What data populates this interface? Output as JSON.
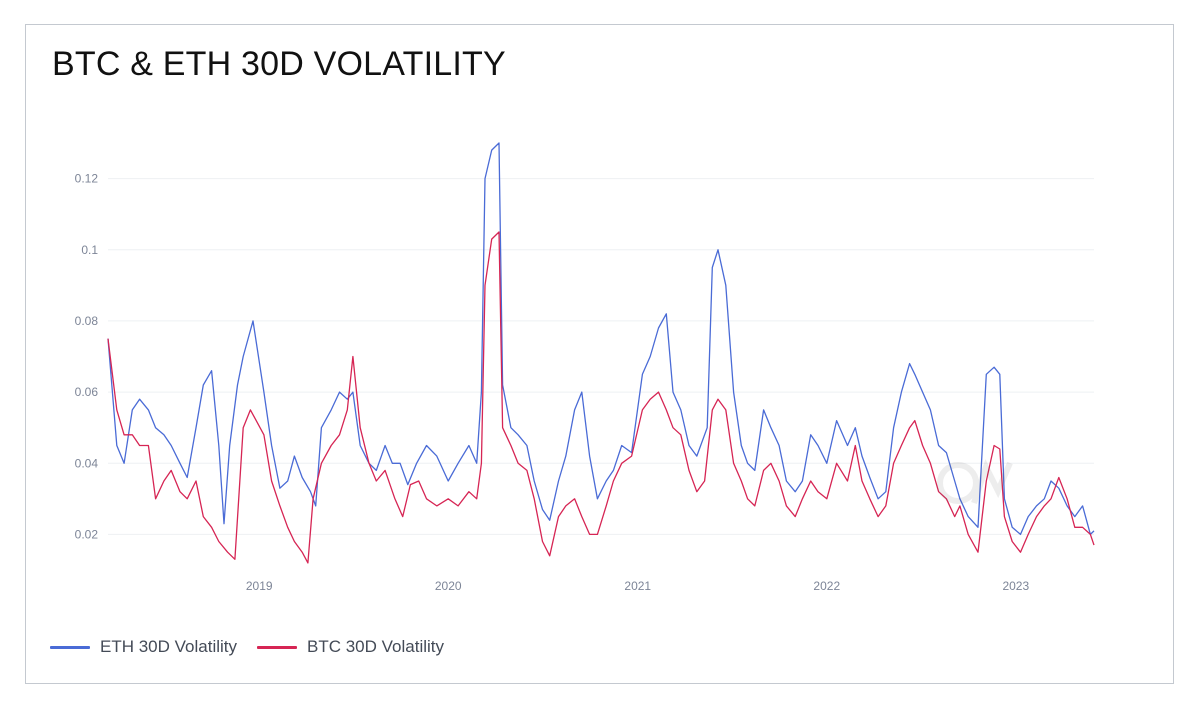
{
  "chart_data": {
    "type": "line",
    "title": "BTC & ETH 30D VOLATILITY",
    "xlabel": "",
    "ylabel": "",
    "xlim": [
      "2018-03-15",
      "2023-06-01"
    ],
    "ylim": [
      0.01,
      0.13
    ],
    "x_ticks": [
      "2019",
      "2020",
      "2021",
      "2022",
      "2023"
    ],
    "y_ticks": [
      0.02,
      0.04,
      0.06,
      0.08,
      0.1,
      0.12
    ],
    "y_tick_labels": [
      "0.02",
      "0.04",
      "0.06",
      "0.08",
      "0.1",
      "0.12"
    ],
    "grid": "horizontal",
    "legend": "bottom-left",
    "series": [
      {
        "name": "ETH 30D Volatility",
        "color": "#4a6bd6",
        "points": [
          [
            "2018-03-15",
            0.075
          ],
          [
            "2018-04-01",
            0.045
          ],
          [
            "2018-04-15",
            0.04
          ],
          [
            "2018-05-01",
            0.055
          ],
          [
            "2018-05-15",
            0.058
          ],
          [
            "2018-06-01",
            0.055
          ],
          [
            "2018-06-15",
            0.05
          ],
          [
            "2018-07-01",
            0.048
          ],
          [
            "2018-07-15",
            0.045
          ],
          [
            "2018-08-01",
            0.04
          ],
          [
            "2018-08-15",
            0.036
          ],
          [
            "2018-09-01",
            0.05
          ],
          [
            "2018-09-15",
            0.062
          ],
          [
            "2018-10-01",
            0.066
          ],
          [
            "2018-10-15",
            0.045
          ],
          [
            "2018-10-25",
            0.023
          ],
          [
            "2018-11-05",
            0.045
          ],
          [
            "2018-11-20",
            0.062
          ],
          [
            "2018-12-01",
            0.07
          ],
          [
            "2018-12-20",
            0.08
          ],
          [
            "2019-01-10",
            0.06
          ],
          [
            "2019-01-25",
            0.045
          ],
          [
            "2019-02-10",
            0.033
          ],
          [
            "2019-02-25",
            0.035
          ],
          [
            "2019-03-10",
            0.042
          ],
          [
            "2019-03-25",
            0.036
          ],
          [
            "2019-04-10",
            0.032
          ],
          [
            "2019-04-20",
            0.028
          ],
          [
            "2019-05-01",
            0.05
          ],
          [
            "2019-05-20",
            0.055
          ],
          [
            "2019-06-05",
            0.06
          ],
          [
            "2019-06-20",
            0.058
          ],
          [
            "2019-07-01",
            0.06
          ],
          [
            "2019-07-15",
            0.045
          ],
          [
            "2019-08-01",
            0.04
          ],
          [
            "2019-08-15",
            0.038
          ],
          [
            "2019-09-01",
            0.045
          ],
          [
            "2019-09-15",
            0.04
          ],
          [
            "2019-09-30",
            0.04
          ],
          [
            "2019-10-15",
            0.034
          ],
          [
            "2019-11-01",
            0.04
          ],
          [
            "2019-11-20",
            0.045
          ],
          [
            "2019-12-10",
            0.042
          ],
          [
            "2020-01-01",
            0.035
          ],
          [
            "2020-01-20",
            0.04
          ],
          [
            "2020-02-10",
            0.045
          ],
          [
            "2020-02-25",
            0.04
          ],
          [
            "2020-03-05",
            0.06
          ],
          [
            "2020-03-12",
            0.12
          ],
          [
            "2020-03-25",
            0.128
          ],
          [
            "2020-04-08",
            0.13
          ],
          [
            "2020-04-15",
            0.062
          ],
          [
            "2020-05-01",
            0.05
          ],
          [
            "2020-05-15",
            0.048
          ],
          [
            "2020-06-01",
            0.045
          ],
          [
            "2020-06-15",
            0.035
          ],
          [
            "2020-07-01",
            0.027
          ],
          [
            "2020-07-15",
            0.024
          ],
          [
            "2020-08-01",
            0.035
          ],
          [
            "2020-08-15",
            0.042
          ],
          [
            "2020-09-01",
            0.055
          ],
          [
            "2020-09-15",
            0.06
          ],
          [
            "2020-09-30",
            0.042
          ],
          [
            "2020-10-15",
            0.03
          ],
          [
            "2020-11-01",
            0.035
          ],
          [
            "2020-11-15",
            0.038
          ],
          [
            "2020-12-01",
            0.045
          ],
          [
            "2020-12-20",
            0.043
          ],
          [
            "2021-01-10",
            0.065
          ],
          [
            "2021-01-25",
            0.07
          ],
          [
            "2021-02-10",
            0.078
          ],
          [
            "2021-02-25",
            0.082
          ],
          [
            "2021-03-10",
            0.06
          ],
          [
            "2021-03-25",
            0.055
          ],
          [
            "2021-04-10",
            0.045
          ],
          [
            "2021-04-25",
            0.042
          ],
          [
            "2021-05-15",
            0.05
          ],
          [
            "2021-05-25",
            0.095
          ],
          [
            "2021-06-05",
            0.1
          ],
          [
            "2021-06-20",
            0.09
          ],
          [
            "2021-07-05",
            0.06
          ],
          [
            "2021-07-20",
            0.045
          ],
          [
            "2021-08-01",
            0.04
          ],
          [
            "2021-08-15",
            0.038
          ],
          [
            "2021-09-01",
            0.055
          ],
          [
            "2021-09-15",
            0.05
          ],
          [
            "2021-10-01",
            0.045
          ],
          [
            "2021-10-15",
            0.035
          ],
          [
            "2021-11-01",
            0.032
          ],
          [
            "2021-11-15",
            0.035
          ],
          [
            "2021-12-01",
            0.048
          ],
          [
            "2021-12-15",
            0.045
          ],
          [
            "2022-01-01",
            0.04
          ],
          [
            "2022-01-20",
            0.052
          ],
          [
            "2022-02-10",
            0.045
          ],
          [
            "2022-02-25",
            0.05
          ],
          [
            "2022-03-10",
            0.042
          ],
          [
            "2022-03-25",
            0.036
          ],
          [
            "2022-04-10",
            0.03
          ],
          [
            "2022-04-25",
            0.032
          ],
          [
            "2022-05-10",
            0.05
          ],
          [
            "2022-05-25",
            0.06
          ],
          [
            "2022-06-10",
            0.068
          ],
          [
            "2022-06-20",
            0.065
          ],
          [
            "2022-07-05",
            0.06
          ],
          [
            "2022-07-20",
            0.055
          ],
          [
            "2022-08-05",
            0.045
          ],
          [
            "2022-08-20",
            0.043
          ],
          [
            "2022-09-05",
            0.035
          ],
          [
            "2022-09-15",
            0.03
          ],
          [
            "2022-10-01",
            0.025
          ],
          [
            "2022-10-20",
            0.022
          ],
          [
            "2022-11-05",
            0.065
          ],
          [
            "2022-11-20",
            0.067
          ],
          [
            "2022-12-01",
            0.065
          ],
          [
            "2022-12-10",
            0.03
          ],
          [
            "2022-12-25",
            0.022
          ],
          [
            "2023-01-10",
            0.02
          ],
          [
            "2023-01-25",
            0.025
          ],
          [
            "2023-02-10",
            0.028
          ],
          [
            "2023-02-25",
            0.03
          ],
          [
            "2023-03-10",
            0.035
          ],
          [
            "2023-03-25",
            0.033
          ],
          [
            "2023-04-10",
            0.028
          ],
          [
            "2023-04-25",
            0.025
          ],
          [
            "2023-05-10",
            0.028
          ],
          [
            "2023-05-25",
            0.02
          ],
          [
            "2023-06-01",
            0.021
          ]
        ]
      },
      {
        "name": "BTC 30D Volatility",
        "color": "#d62554",
        "points": [
          [
            "2018-03-15",
            0.075
          ],
          [
            "2018-04-01",
            0.055
          ],
          [
            "2018-04-15",
            0.048
          ],
          [
            "2018-05-01",
            0.048
          ],
          [
            "2018-05-15",
            0.045
          ],
          [
            "2018-06-01",
            0.045
          ],
          [
            "2018-06-15",
            0.03
          ],
          [
            "2018-07-01",
            0.035
          ],
          [
            "2018-07-15",
            0.038
          ],
          [
            "2018-08-01",
            0.032
          ],
          [
            "2018-08-15",
            0.03
          ],
          [
            "2018-09-01",
            0.035
          ],
          [
            "2018-09-15",
            0.025
          ],
          [
            "2018-10-01",
            0.022
          ],
          [
            "2018-10-15",
            0.018
          ],
          [
            "2018-11-01",
            0.015
          ],
          [
            "2018-11-15",
            0.013
          ],
          [
            "2018-12-01",
            0.05
          ],
          [
            "2018-12-15",
            0.055
          ],
          [
            "2019-01-10",
            0.048
          ],
          [
            "2019-01-25",
            0.035
          ],
          [
            "2019-02-10",
            0.028
          ],
          [
            "2019-02-25",
            0.022
          ],
          [
            "2019-03-10",
            0.018
          ],
          [
            "2019-03-25",
            0.015
          ],
          [
            "2019-04-05",
            0.012
          ],
          [
            "2019-04-15",
            0.03
          ],
          [
            "2019-05-01",
            0.04
          ],
          [
            "2019-05-20",
            0.045
          ],
          [
            "2019-06-05",
            0.048
          ],
          [
            "2019-06-20",
            0.055
          ],
          [
            "2019-07-01",
            0.07
          ],
          [
            "2019-07-15",
            0.05
          ],
          [
            "2019-08-01",
            0.04
          ],
          [
            "2019-08-15",
            0.035
          ],
          [
            "2019-09-01",
            0.038
          ],
          [
            "2019-09-20",
            0.03
          ],
          [
            "2019-10-05",
            0.025
          ],
          [
            "2019-10-20",
            0.034
          ],
          [
            "2019-11-05",
            0.035
          ],
          [
            "2019-11-20",
            0.03
          ],
          [
            "2019-12-10",
            0.028
          ],
          [
            "2020-01-01",
            0.03
          ],
          [
            "2020-01-20",
            0.028
          ],
          [
            "2020-02-10",
            0.032
          ],
          [
            "2020-02-25",
            0.03
          ],
          [
            "2020-03-05",
            0.04
          ],
          [
            "2020-03-12",
            0.09
          ],
          [
            "2020-03-25",
            0.103
          ],
          [
            "2020-04-08",
            0.105
          ],
          [
            "2020-04-15",
            0.05
          ],
          [
            "2020-05-01",
            0.045
          ],
          [
            "2020-05-15",
            0.04
          ],
          [
            "2020-06-01",
            0.038
          ],
          [
            "2020-06-15",
            0.03
          ],
          [
            "2020-07-01",
            0.018
          ],
          [
            "2020-07-15",
            0.014
          ],
          [
            "2020-08-01",
            0.025
          ],
          [
            "2020-08-15",
            0.028
          ],
          [
            "2020-09-01",
            0.03
          ],
          [
            "2020-09-15",
            0.025
          ],
          [
            "2020-09-30",
            0.02
          ],
          [
            "2020-10-15",
            0.02
          ],
          [
            "2020-11-01",
            0.028
          ],
          [
            "2020-11-15",
            0.035
          ],
          [
            "2020-12-01",
            0.04
          ],
          [
            "2020-12-20",
            0.042
          ],
          [
            "2021-01-10",
            0.055
          ],
          [
            "2021-01-25",
            0.058
          ],
          [
            "2021-02-10",
            0.06
          ],
          [
            "2021-02-25",
            0.055
          ],
          [
            "2021-03-10",
            0.05
          ],
          [
            "2021-03-25",
            0.048
          ],
          [
            "2021-04-10",
            0.038
          ],
          [
            "2021-04-25",
            0.032
          ],
          [
            "2021-05-10",
            0.035
          ],
          [
            "2021-05-25",
            0.055
          ],
          [
            "2021-06-05",
            0.058
          ],
          [
            "2021-06-20",
            0.055
          ],
          [
            "2021-07-05",
            0.04
          ],
          [
            "2021-07-20",
            0.035
          ],
          [
            "2021-08-01",
            0.03
          ],
          [
            "2021-08-15",
            0.028
          ],
          [
            "2021-09-01",
            0.038
          ],
          [
            "2021-09-15",
            0.04
          ],
          [
            "2021-10-01",
            0.035
          ],
          [
            "2021-10-15",
            0.028
          ],
          [
            "2021-11-01",
            0.025
          ],
          [
            "2021-11-15",
            0.03
          ],
          [
            "2021-12-01",
            0.035
          ],
          [
            "2021-12-15",
            0.032
          ],
          [
            "2022-01-01",
            0.03
          ],
          [
            "2022-01-20",
            0.04
          ],
          [
            "2022-02-10",
            0.035
          ],
          [
            "2022-02-25",
            0.045
          ],
          [
            "2022-03-10",
            0.035
          ],
          [
            "2022-03-25",
            0.03
          ],
          [
            "2022-04-10",
            0.025
          ],
          [
            "2022-04-25",
            0.028
          ],
          [
            "2022-05-10",
            0.04
          ],
          [
            "2022-05-25",
            0.045
          ],
          [
            "2022-06-10",
            0.05
          ],
          [
            "2022-06-20",
            0.052
          ],
          [
            "2022-07-05",
            0.045
          ],
          [
            "2022-07-20",
            0.04
          ],
          [
            "2022-08-05",
            0.032
          ],
          [
            "2022-08-20",
            0.03
          ],
          [
            "2022-09-05",
            0.025
          ],
          [
            "2022-09-15",
            0.028
          ],
          [
            "2022-10-01",
            0.02
          ],
          [
            "2022-10-20",
            0.015
          ],
          [
            "2022-11-05",
            0.035
          ],
          [
            "2022-11-20",
            0.045
          ],
          [
            "2022-12-01",
            0.044
          ],
          [
            "2022-12-10",
            0.025
          ],
          [
            "2022-12-25",
            0.018
          ],
          [
            "2023-01-10",
            0.015
          ],
          [
            "2023-01-25",
            0.02
          ],
          [
            "2023-02-10",
            0.025
          ],
          [
            "2023-02-25",
            0.028
          ],
          [
            "2023-03-10",
            0.03
          ],
          [
            "2023-03-25",
            0.036
          ],
          [
            "2023-04-10",
            0.03
          ],
          [
            "2023-04-25",
            0.022
          ],
          [
            "2023-05-10",
            0.022
          ],
          [
            "2023-05-25",
            0.02
          ],
          [
            "2023-06-01",
            0.017
          ]
        ]
      }
    ]
  }
}
